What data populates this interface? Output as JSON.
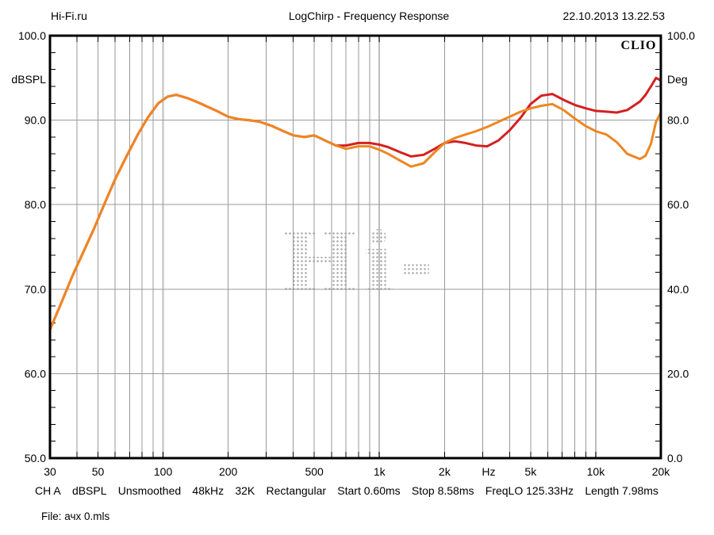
{
  "header": {
    "site": "Hi-Fi.ru",
    "title": "LogChirp - Frequency Response",
    "datetime": "22.10.2013 13.22.53"
  },
  "brand_label": "CLIO",
  "watermark": {
    "text": "Hi-Fi.ru"
  },
  "status_bar": {
    "tokens": [
      "CH A",
      "dBSPL",
      "Unsmoothed",
      "48kHz",
      "32K",
      "Rectangular",
      "Start 0.60ms",
      "Stop 8.58ms",
      "FreqLO 125.33Hz",
      "Length 7.98ms"
    ]
  },
  "file_line": "File: ачх 0.mls",
  "chart_data": {
    "type": "line",
    "title": "LogChirp - Frequency Response",
    "grid": true,
    "legend": "none",
    "colors": {
      "grid_minor": "#9a9a9a",
      "grid_decade": "#bdbdbd",
      "border": "#000000",
      "curve_red": "#d42020",
      "curve_orange": "#ee8622"
    },
    "x_axis": {
      "scale": "log",
      "unit_label": "Hz",
      "unit_label_hz": 3200,
      "min_hz": 30,
      "max_hz": 20000,
      "labeled_ticks": [
        {
          "label": "30",
          "hz": 30
        },
        {
          "label": "50",
          "hz": 50
        },
        {
          "label": "100",
          "hz": 100
        },
        {
          "label": "200",
          "hz": 200
        },
        {
          "label": "500",
          "hz": 500
        },
        {
          "label": "1k",
          "hz": 1000
        },
        {
          "label": "2k",
          "hz": 2000
        },
        {
          "label": "5k",
          "hz": 5000
        },
        {
          "label": "10k",
          "hz": 10000
        },
        {
          "label": "20k",
          "hz": 20000
        }
      ],
      "gridline_hz": [
        40,
        50,
        60,
        70,
        80,
        90,
        100,
        200,
        300,
        400,
        500,
        600,
        700,
        800,
        900,
        1000,
        2000,
        3000,
        4000,
        5000,
        6000,
        7000,
        8000,
        9000,
        10000
      ],
      "decade_hz": [
        100,
        1000,
        10000
      ]
    },
    "y_left": {
      "label": "dBSPL",
      "min": 50,
      "max": 100,
      "major_step": 10,
      "minor_step": 2,
      "tick_labels": [
        "100.0",
        "90.0",
        "80.0",
        "70.0",
        "60.0",
        "50.0"
      ]
    },
    "y_right": {
      "label": "Deg",
      "min": 0,
      "max": 100,
      "major_step": 20,
      "tick_labels": [
        "100.0",
        "80.0",
        "60.0",
        "40.0",
        "20.0",
        "0.0"
      ]
    },
    "frequencies_hz": [
      30,
      34,
      38,
      43,
      48,
      54,
      60,
      68,
      76,
      85,
      95,
      105,
      115,
      130,
      145,
      160,
      180,
      200,
      225,
      250,
      280,
      320,
      360,
      400,
      450,
      500,
      560,
      630,
      700,
      800,
      900,
      1000,
      1100,
      1250,
      1400,
      1600,
      1800,
      2000,
      2240,
      2500,
      2800,
      3150,
      3550,
      4000,
      4500,
      5000,
      5600,
      6300,
      7100,
      8000,
      9000,
      10000,
      11200,
      12500,
      14000,
      16000,
      17000,
      18000,
      19000,
      20000
    ],
    "series": [
      {
        "name": "response-red",
        "color": "#d42020",
        "values_db": [
          65.2,
          68.5,
          71.5,
          74.5,
          77.2,
          80.3,
          83.0,
          85.8,
          88.2,
          90.3,
          92.0,
          92.8,
          93.0,
          92.6,
          92.1,
          91.6,
          91.0,
          90.4,
          90.1,
          90.0,
          89.8,
          89.3,
          88.7,
          88.2,
          88.0,
          88.2,
          87.6,
          87.0,
          87.0,
          87.3,
          87.3,
          87.1,
          86.8,
          86.2,
          85.7,
          85.9,
          86.6,
          87.3,
          87.5,
          87.3,
          87.0,
          86.9,
          87.6,
          88.8,
          90.3,
          91.9,
          92.9,
          93.1,
          92.4,
          91.8,
          91.4,
          91.1,
          91.0,
          90.9,
          91.2,
          92.2,
          93.0,
          94.0,
          95.0,
          94.7
        ]
      },
      {
        "name": "response-orange",
        "color": "#ee8622",
        "values_db": [
          65.2,
          68.5,
          71.5,
          74.5,
          77.2,
          80.3,
          83.0,
          85.8,
          88.2,
          90.3,
          92.0,
          92.8,
          93.0,
          92.6,
          92.1,
          91.6,
          91.0,
          90.4,
          90.1,
          90.0,
          89.8,
          89.3,
          88.7,
          88.2,
          88.0,
          88.2,
          87.6,
          87.0,
          86.6,
          86.9,
          86.9,
          86.5,
          86.0,
          85.2,
          84.5,
          84.9,
          86.2,
          87.3,
          87.9,
          88.3,
          88.7,
          89.2,
          89.8,
          90.4,
          91.0,
          91.4,
          91.7,
          91.9,
          91.2,
          90.2,
          89.3,
          88.7,
          88.3,
          87.4,
          86.0,
          85.4,
          85.8,
          87.2,
          89.8,
          90.9
        ]
      }
    ]
  }
}
